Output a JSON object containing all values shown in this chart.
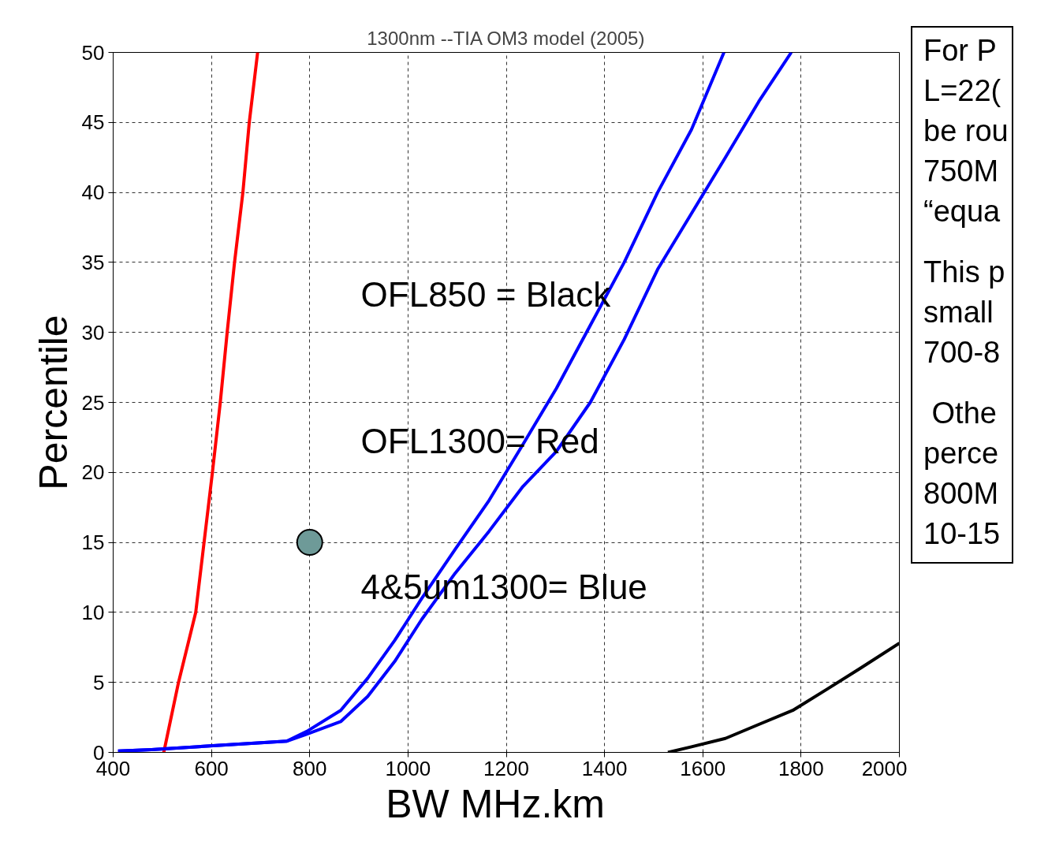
{
  "chart_data": {
    "type": "line",
    "title": "1300nm --TIA OM3 model (2005)",
    "xlabel": "BW   MHz.km",
    "ylabel": "Percentile",
    "xlim": [
      400,
      2000
    ],
    "ylim": [
      0,
      50
    ],
    "xticks": [
      400,
      600,
      800,
      1000,
      1200,
      1400,
      1600,
      1800,
      2000
    ],
    "yticks": [
      0,
      5,
      10,
      15,
      20,
      25,
      30,
      35,
      40,
      45,
      50
    ],
    "grid": true,
    "legend": false,
    "marker": "none",
    "line_style": "solid",
    "series": [
      {
        "color": "#ff0000",
        "x": [
          503,
          533,
          568,
          585,
          602,
          618,
          632,
          647,
          664,
          677,
          694
        ],
        "values": [
          0,
          5,
          10,
          15,
          20,
          25,
          30,
          35,
          40,
          45,
          50
        ]
      },
      {
        "color": "#0000ff",
        "x": [
          410,
          478,
          616,
          753,
          794,
          863,
          918,
          973,
          1028,
          1096,
          1165,
          1234,
          1302,
          1371,
          1440,
          1508,
          1577,
          1643
        ],
        "values": [
          0.1,
          0.2,
          0.5,
          0.8,
          1.5,
          3,
          5.3,
          8,
          11,
          14.5,
          18,
          22,
          26,
          30.5,
          35,
          40,
          44.5,
          50
        ]
      },
      {
        "color": "#0000ff",
        "x": [
          410,
          478,
          616,
          753,
          794,
          863,
          918,
          973,
          1028,
          1096,
          1165,
          1234,
          1302,
          1371,
          1440,
          1508,
          1577,
          1646,
          1714,
          1780
        ],
        "values": [
          0.1,
          0.2,
          0.5,
          0.8,
          1.3,
          2.2,
          4,
          6.5,
          9.5,
          12.8,
          15.8,
          19,
          21.5,
          25,
          29.5,
          34.5,
          38.5,
          42.5,
          46.5,
          50
        ]
      },
      {
        "color": "#000000",
        "x": [
          1529,
          1577,
          1646,
          1714,
          1783,
          1852,
          1920,
          2000
        ],
        "values": [
          0,
          0.4,
          1,
          2,
          3,
          4.5,
          6,
          7.8
        ]
      },
      {
        "type": "scatter",
        "marker": "circle",
        "color": "#6e9a98",
        "x": [
          800
        ],
        "values": [
          15
        ]
      }
    ],
    "annotations": [
      "OFL850 = Black",
      "OFL1300= Red",
      "4&5um1300= Blue",
      "For P",
      "L=22(",
      "be rou",
      "750M",
      "“equa",
      "This p",
      "small",
      "700-8",
      " Othe",
      "perce",
      "800M",
      "10-15"
    ]
  }
}
